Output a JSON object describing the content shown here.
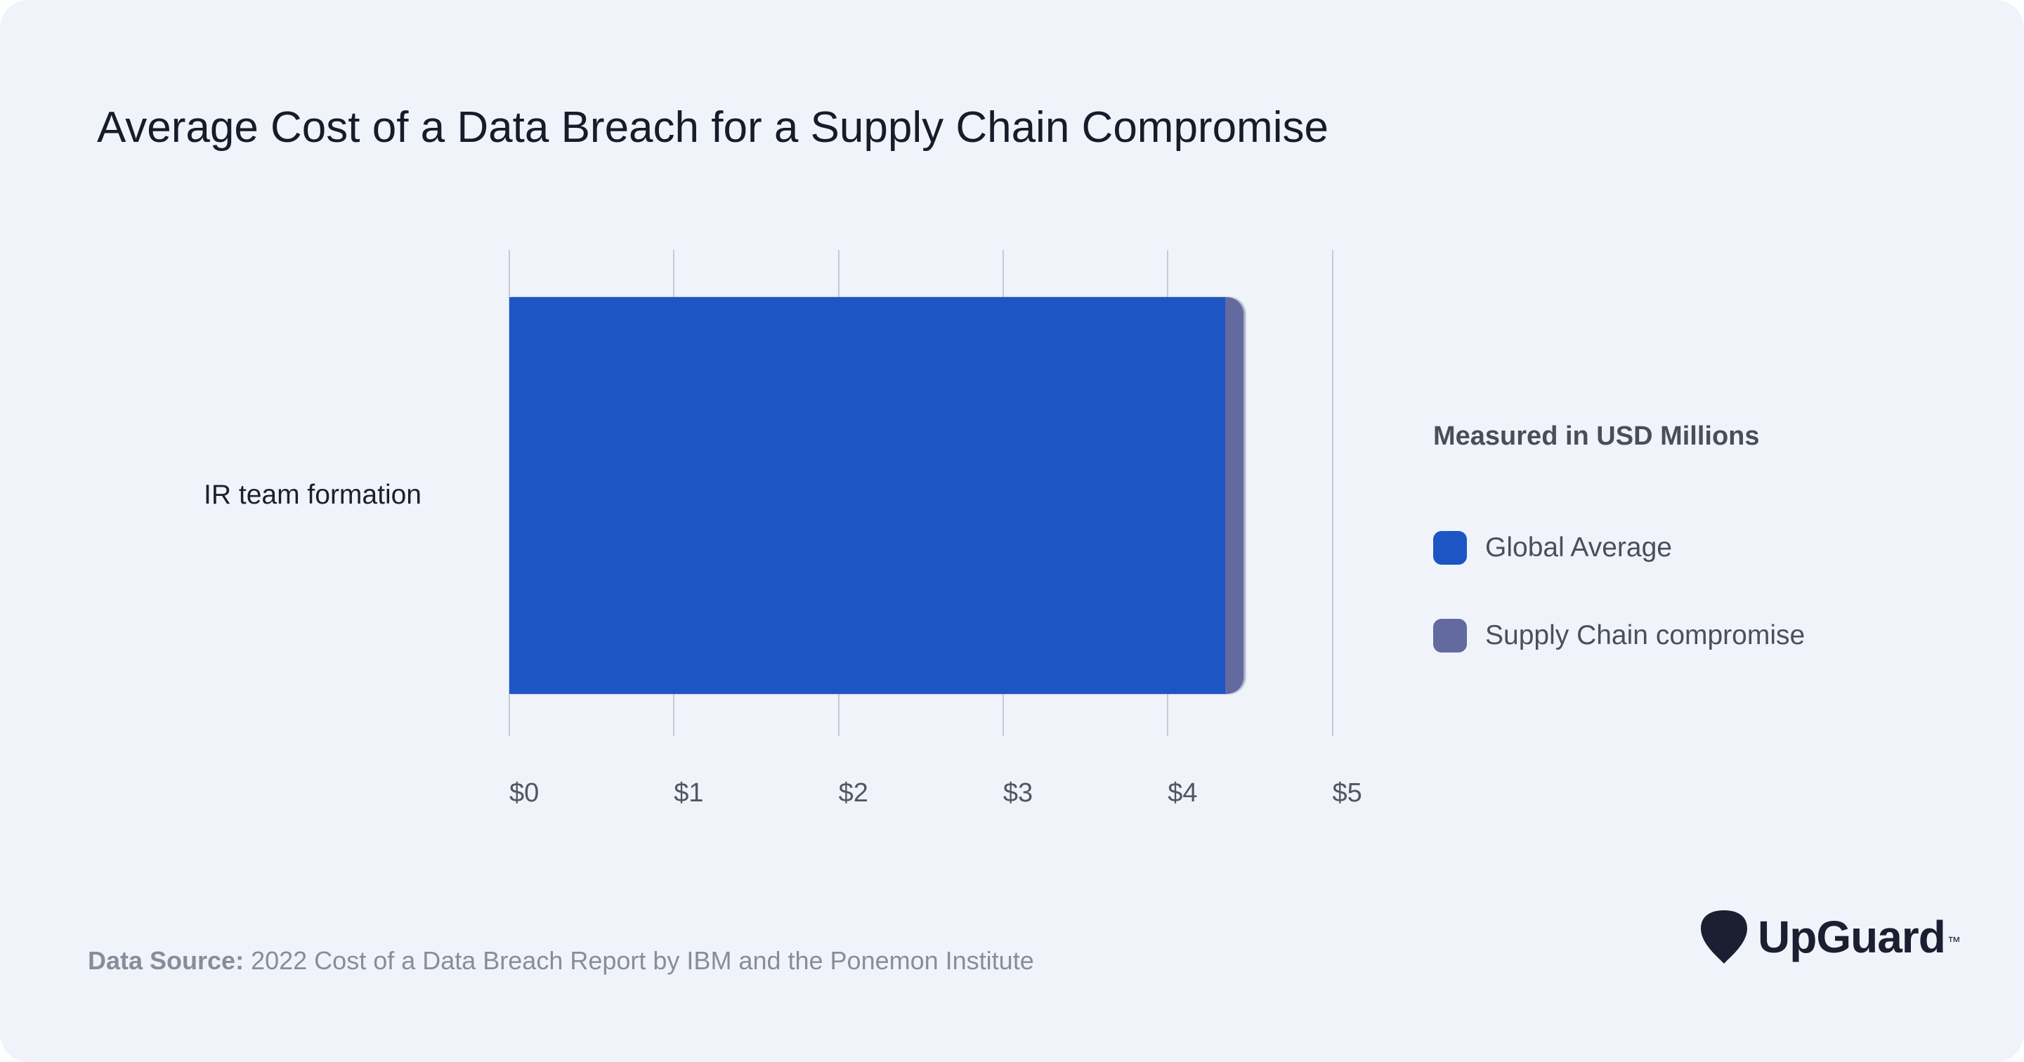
{
  "title": "Average Cost of a Data Breach for a Supply Chain Compromise",
  "chart_data": {
    "type": "bar",
    "orientation": "horizontal",
    "title": "Average Cost of a Data Breach for a Supply Chain Compromise",
    "categories": [
      "IR team formation"
    ],
    "series": [
      {
        "name": "Global Average",
        "value": 4.35,
        "color": "#1d56c4"
      },
      {
        "name": "Supply Chain compromise",
        "value": 4.46,
        "color": "#636a9f"
      }
    ],
    "unit": "USD Millions",
    "xlabel": "",
    "ylabel": "",
    "xlim": [
      0,
      5
    ],
    "x_tick_labels": [
      "$0",
      "$1",
      "$2",
      "$3",
      "$4",
      "$5"
    ],
    "x_tick_values": [
      0,
      1,
      2,
      3,
      4,
      5
    ],
    "grid": "vertical",
    "legend_title": "Measured in USD Millions",
    "legend_position": "right"
  },
  "legend": {
    "title": "Measured in USD Millions"
  },
  "source": {
    "label": "Data Source:",
    "text": " 2022 Cost of a Data Breach Report by IBM and the Ponemon Institute"
  },
  "logo": {
    "wordmark": "UpGuard",
    "trademark": "™"
  },
  "colors": {
    "background": "#f0f4fa",
    "gridline": "#c3c8dc",
    "title_text": "#171c2b",
    "bar_global_average": "#1d56c4",
    "bar_supply_chain": "#636a9f",
    "logo": "#1b1f31"
  }
}
